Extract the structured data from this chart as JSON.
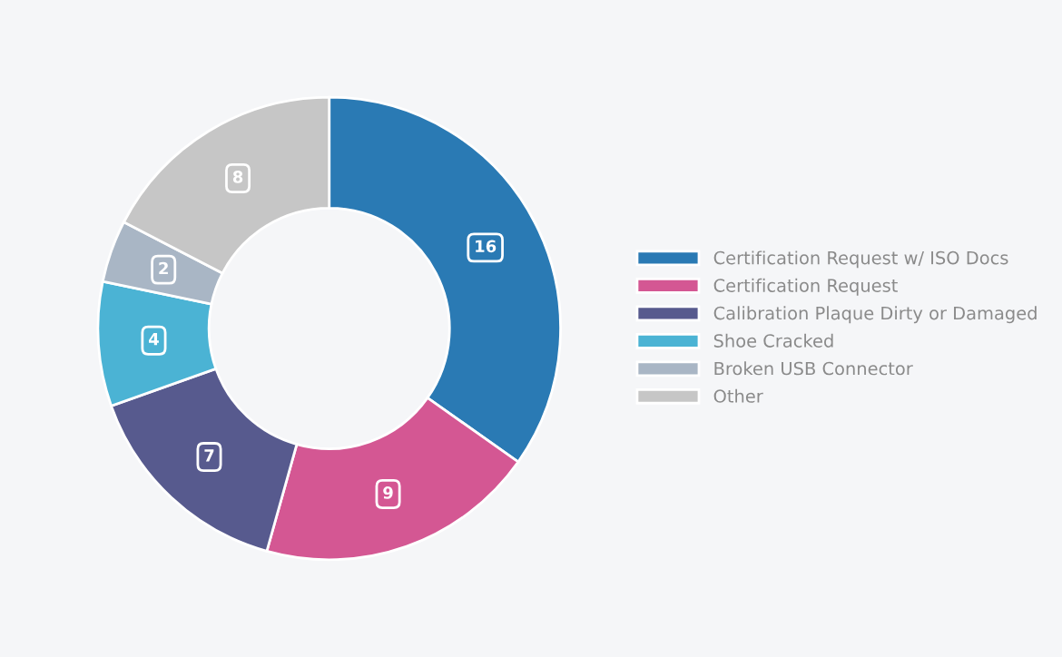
{
  "chart_data": {
    "type": "donut",
    "categories": [
      "Certification Request w/ ISO Docs",
      "Certification Request",
      "Calibration Plaque Dirty or Damaged",
      "Shoe Cracked",
      "Broken USB Connector",
      "Other"
    ],
    "values": [
      16,
      9,
      7,
      4,
      2,
      8
    ],
    "colors": [
      "#2a7ab4",
      "#d45793",
      "#575a8e",
      "#4bb3d4",
      "#a9b6c5",
      "#c6c6c6"
    ],
    "data_labels": true,
    "legend": "right"
  }
}
